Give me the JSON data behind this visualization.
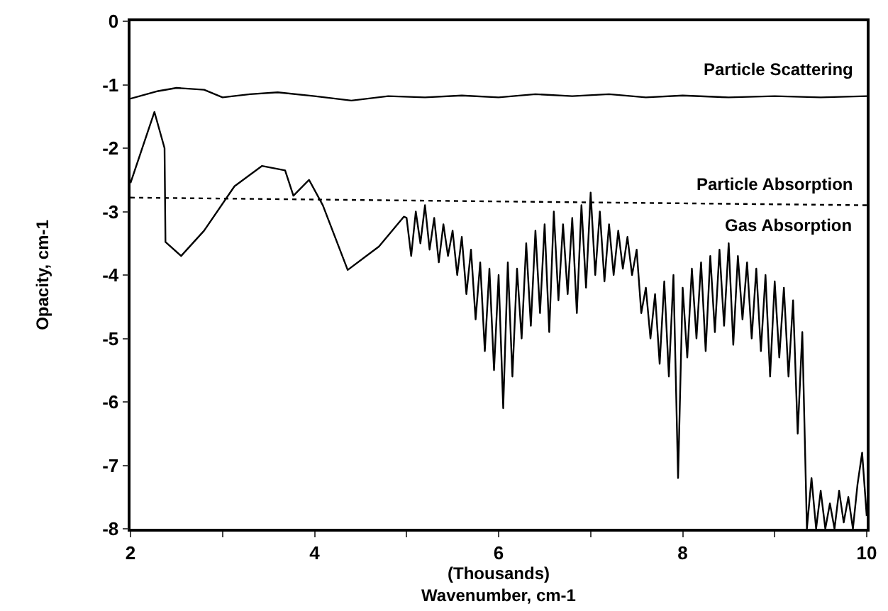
{
  "chart_data": {
    "type": "line",
    "xlabel": "(Thousands)\nWavenumber, cm-1",
    "ylabel": "Opacity, cm-1",
    "xlim": [
      2,
      10
    ],
    "xticks": [
      2,
      {
        "value": 3,
        "label": null
      },
      4,
      {
        "value": 5,
        "label": null
      },
      6,
      {
        "value": 7,
        "label": null
      },
      8,
      {
        "value": 9,
        "label": null
      },
      10
    ],
    "ylim": [
      -8,
      0
    ],
    "yticks": [
      0,
      -1,
      -2,
      -3,
      -4,
      -5,
      -6,
      -7,
      -8
    ],
    "marker": "none",
    "series": [
      {
        "color": "#000000",
        "line_style": "solid",
        "x": [
          2,
          2.3,
          2.5,
          2.8,
          3.0,
          3.3,
          3.6,
          4.0,
          4.4,
          4.8,
          5.2,
          5.6,
          6.0,
          6.4,
          6.8,
          7.2,
          7.6,
          8.0,
          8.5,
          9.0,
          9.5,
          10
        ],
        "values": [
          -1.22,
          -1.1,
          -1.05,
          -1.08,
          -1.2,
          -1.15,
          -1.12,
          -1.18,
          -1.25,
          -1.18,
          -1.2,
          -1.17,
          -1.2,
          -1.15,
          -1.18,
          -1.15,
          -1.2,
          -1.17,
          -1.2,
          -1.18,
          -1.2,
          -1.18
        ]
      },
      {
        "color": "#000000",
        "line_style": "dotted",
        "x": [
          2,
          10
        ],
        "values": [
          -2.78,
          -2.9
        ]
      },
      {
        "color": "#000000",
        "line_style": "solid",
        "x": [
          2,
          2.26,
          2.37,
          2.38,
          2.55,
          2.8,
          3.13,
          3.43,
          3.68,
          3.77,
          3.94,
          4.09,
          4.36,
          4.7,
          4.97,
          5.0,
          5.05,
          5.1,
          5.15,
          5.2,
          5.25,
          5.3,
          5.35,
          5.4,
          5.45,
          5.5,
          5.55,
          5.6,
          5.65,
          5.7,
          5.75,
          5.8,
          5.85,
          5.9,
          5.95,
          6.0,
          6.05,
          6.1,
          6.15,
          6.2,
          6.25,
          6.3,
          6.35,
          6.4,
          6.45,
          6.5,
          6.55,
          6.6,
          6.65,
          6.7,
          6.75,
          6.8,
          6.85,
          6.9,
          6.95,
          7.0,
          7.05,
          7.1,
          7.15,
          7.2,
          7.25,
          7.3,
          7.35,
          7.4,
          7.45,
          7.5,
          7.55,
          7.6,
          7.65,
          7.7,
          7.75,
          7.8,
          7.85,
          7.9,
          7.95,
          8.0,
          8.05,
          8.1,
          8.15,
          8.2,
          8.25,
          8.3,
          8.35,
          8.4,
          8.45,
          8.5,
          8.55,
          8.6,
          8.65,
          8.7,
          8.75,
          8.8,
          8.85,
          8.9,
          8.95,
          9.0,
          9.05,
          9.1,
          9.15,
          9.2,
          9.25,
          9.3,
          9.35,
          9.4,
          9.45,
          9.5,
          9.55,
          9.6,
          9.65,
          9.7,
          9.75,
          9.8,
          9.85,
          9.9,
          9.95,
          10.0
        ],
        "values": [
          -2.55,
          -1.43,
          -2.0,
          -3.48,
          -3.7,
          -3.3,
          -2.6,
          -2.28,
          -2.35,
          -2.75,
          -2.5,
          -2.9,
          -3.92,
          -3.55,
          -3.08,
          -3.1,
          -3.7,
          -3.0,
          -3.5,
          -2.9,
          -3.6,
          -3.1,
          -3.8,
          -3.2,
          -3.7,
          -3.3,
          -4.0,
          -3.4,
          -4.3,
          -3.6,
          -4.7,
          -3.8,
          -5.2,
          -3.9,
          -5.5,
          -4.0,
          -6.1,
          -3.8,
          -5.6,
          -3.9,
          -5.0,
          -3.5,
          -4.8,
          -3.3,
          -4.6,
          -3.2,
          -4.9,
          -3.0,
          -4.4,
          -3.2,
          -4.3,
          -3.1,
          -4.6,
          -2.9,
          -4.2,
          -2.7,
          -4.0,
          -3.0,
          -4.1,
          -3.2,
          -4.0,
          -3.3,
          -3.9,
          -3.4,
          -4.0,
          -3.6,
          -4.6,
          -4.2,
          -5.0,
          -4.3,
          -5.4,
          -4.1,
          -5.6,
          -4.0,
          -7.2,
          -4.2,
          -5.3,
          -3.9,
          -5.0,
          -3.8,
          -5.2,
          -3.7,
          -4.9,
          -3.6,
          -4.8,
          -3.5,
          -5.1,
          -3.7,
          -4.7,
          -3.8,
          -5.0,
          -3.9,
          -5.2,
          -4.0,
          -5.6,
          -4.1,
          -5.3,
          -4.2,
          -5.6,
          -4.4,
          -6.5,
          -4.9,
          -8.0,
          -7.2,
          -8.0,
          -7.4,
          -8.0,
          -7.6,
          -8.0,
          -7.4,
          -7.9,
          -7.5,
          -8.0,
          -7.3,
          -6.8,
          -7.8
        ]
      }
    ],
    "annotations": [
      "Particle Scattering",
      "Particle Absorption",
      "Gas Absorption"
    ]
  }
}
